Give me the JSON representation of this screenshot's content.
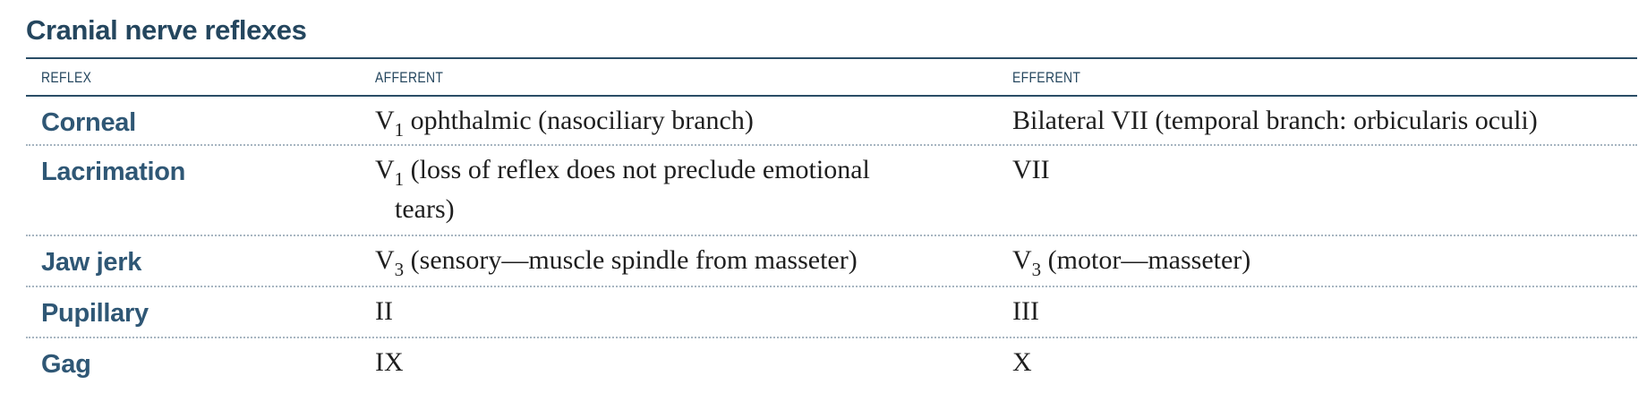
{
  "table": {
    "title": "Cranial nerve reflexes",
    "headers": {
      "reflex": "REFLEX",
      "afferent": "AFFERENT",
      "efferent": "EFFERENT"
    },
    "rows": [
      {
        "reflex": "Corneal",
        "afferent": {
          "nerve": "V",
          "sub": "1",
          "text": " ophthalmic (nasociliary branch)",
          "cont": ""
        },
        "efferent": {
          "nerve": "Bilateral VII (temporal branch: orbicularis oculi)",
          "sub": "",
          "text": ""
        }
      },
      {
        "reflex": "Lacrimation",
        "afferent": {
          "nerve": "V",
          "sub": "1",
          "text": " (loss of reflex does not preclude emotional",
          "cont": "tears)"
        },
        "efferent": {
          "nerve": "VII",
          "sub": "",
          "text": ""
        }
      },
      {
        "reflex": "Jaw jerk",
        "afferent": {
          "nerve": "V",
          "sub": "3",
          "text": " (sensory—muscle spindle from masseter)",
          "cont": ""
        },
        "efferent": {
          "nerve": "V",
          "sub": "3",
          "text": " (motor—masseter)"
        }
      },
      {
        "reflex": "Pupillary",
        "afferent": {
          "nerve": "II",
          "sub": "",
          "text": "",
          "cont": ""
        },
        "efferent": {
          "nerve": "III",
          "sub": "",
          "text": ""
        }
      },
      {
        "reflex": "Gag",
        "afferent": {
          "nerve": "IX",
          "sub": "",
          "text": "",
          "cont": ""
        },
        "efferent": {
          "nerve": "X",
          "sub": "",
          "text": ""
        }
      }
    ]
  }
}
